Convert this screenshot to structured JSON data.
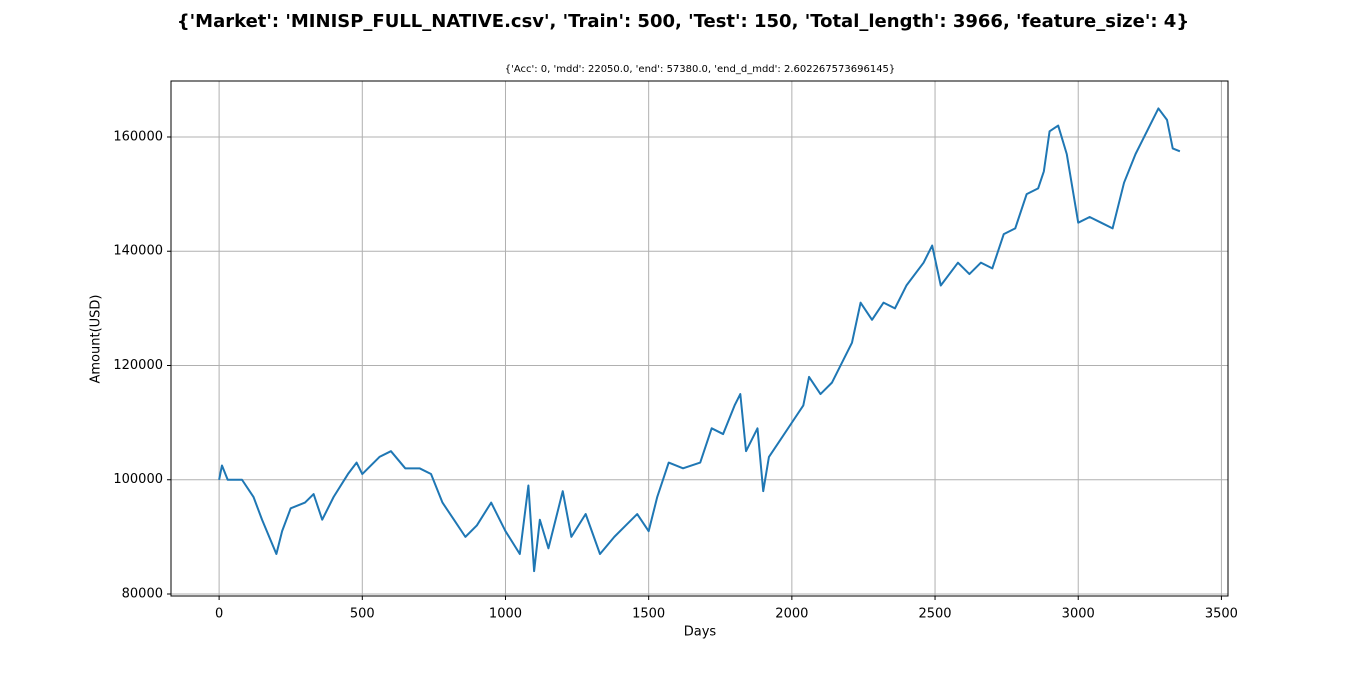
{
  "chart_data": {
    "type": "line",
    "title": "{'Market': 'MINISP_FULL_NATIVE.csv', 'Train': 500, 'Test': 150, 'Total_length': 3966, 'feature_size': 4}",
    "subtitle": "{'Acc': 0, 'mdd': 22050.0, 'end': 57380.0, 'end_d_mdd': 2.602267573696145}",
    "x_label": "Days",
    "y_label": "Amount(USD)",
    "x": [
      0,
      10,
      30,
      80,
      120,
      150,
      200,
      220,
      250,
      300,
      330,
      360,
      400,
      450,
      480,
      500,
      560,
      600,
      650,
      700,
      740,
      780,
      820,
      860,
      900,
      950,
      1000,
      1050,
      1080,
      1100,
      1120,
      1150,
      1200,
      1230,
      1280,
      1330,
      1380,
      1420,
      1460,
      1500,
      1530,
      1570,
      1620,
      1680,
      1720,
      1760,
      1800,
      1820,
      1840,
      1880,
      1900,
      1920,
      1960,
      2000,
      2040,
      2060,
      2100,
      2140,
      2180,
      2210,
      2240,
      2280,
      2320,
      2360,
      2400,
      2460,
      2490,
      2520,
      2580,
      2620,
      2660,
      2700,
      2740,
      2780,
      2820,
      2860,
      2880,
      2900,
      2930,
      2960,
      3000,
      3040,
      3080,
      3120,
      3160,
      3200,
      3240,
      3280,
      3310,
      3330,
      3355
    ],
    "series": [
      {
        "color": "#1f77b4",
        "values": [
          100000,
          102500,
          100000,
          100000,
          97000,
          93000,
          87000,
          91000,
          95000,
          96000,
          97500,
          93000,
          97000,
          101000,
          103000,
          101000,
          104000,
          105000,
          102000,
          102000,
          101000,
          96000,
          93000,
          90000,
          92000,
          96000,
          91000,
          87000,
          99000,
          84000,
          93000,
          88000,
          98000,
          90000,
          94000,
          87000,
          90000,
          92000,
          94000,
          91000,
          97000,
          103000,
          102000,
          103000,
          109000,
          108000,
          113000,
          115000,
          105000,
          109000,
          98000,
          104000,
          107000,
          110000,
          113000,
          118000,
          115000,
          117000,
          121000,
          124000,
          131000,
          128000,
          131000,
          130000,
          134000,
          138000,
          141000,
          134000,
          138000,
          136000,
          138000,
          137000,
          143000,
          144000,
          150000,
          151000,
          154000,
          161000,
          162000,
          157000,
          145000,
          146000,
          145000,
          144000,
          152000,
          157000,
          161000,
          165000,
          163000,
          158000,
          157500
        ]
      }
    ],
    "xlim": [
      -168,
      3523
    ],
    "ylim": [
      79650,
      169800
    ],
    "xticks": [
      0,
      500,
      1000,
      1500,
      2000,
      2500,
      3000,
      3500
    ],
    "yticks": [
      80000,
      100000,
      120000,
      140000,
      160000
    ],
    "grid": true
  }
}
